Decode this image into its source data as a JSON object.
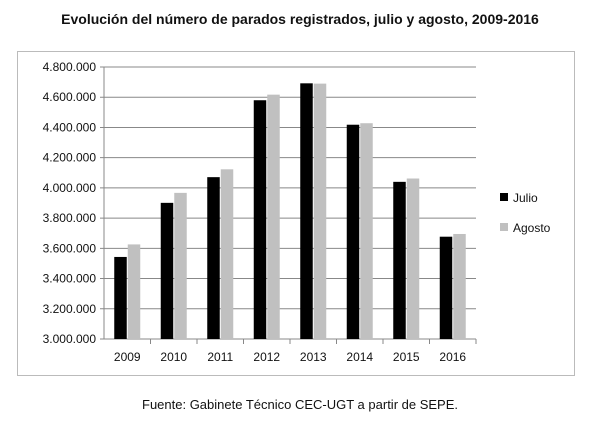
{
  "title": "Evolución del número de parados registrados, julio y agosto, 2009-2016",
  "source": "Fuente: Gabinete Técnico CEC-UGT a partir de SEPE.",
  "chart_data": {
    "type": "bar",
    "categories": [
      "2009",
      "2010",
      "2011",
      "2012",
      "2013",
      "2014",
      "2015",
      "2016"
    ],
    "series": [
      {
        "name": "Julio",
        "color": "#000000",
        "values": [
          3543000,
          3901000,
          4071000,
          4580000,
          4692000,
          4418000,
          4040000,
          3677000
        ]
      },
      {
        "name": "Agosto",
        "color": "#c0c0c0",
        "values": [
          3626000,
          3967000,
          4123000,
          4617000,
          4690000,
          4428000,
          4062000,
          3695000
        ]
      }
    ],
    "ylim": [
      3000000,
      4800000
    ],
    "yticks": [
      "3.000.000",
      "3.200.000",
      "3.400.000",
      "3.600.000",
      "3.800.000",
      "4.000.000",
      "4.200.000",
      "4.400.000",
      "4.600.000",
      "4.800.000"
    ],
    "grid": true,
    "legend": "right"
  }
}
